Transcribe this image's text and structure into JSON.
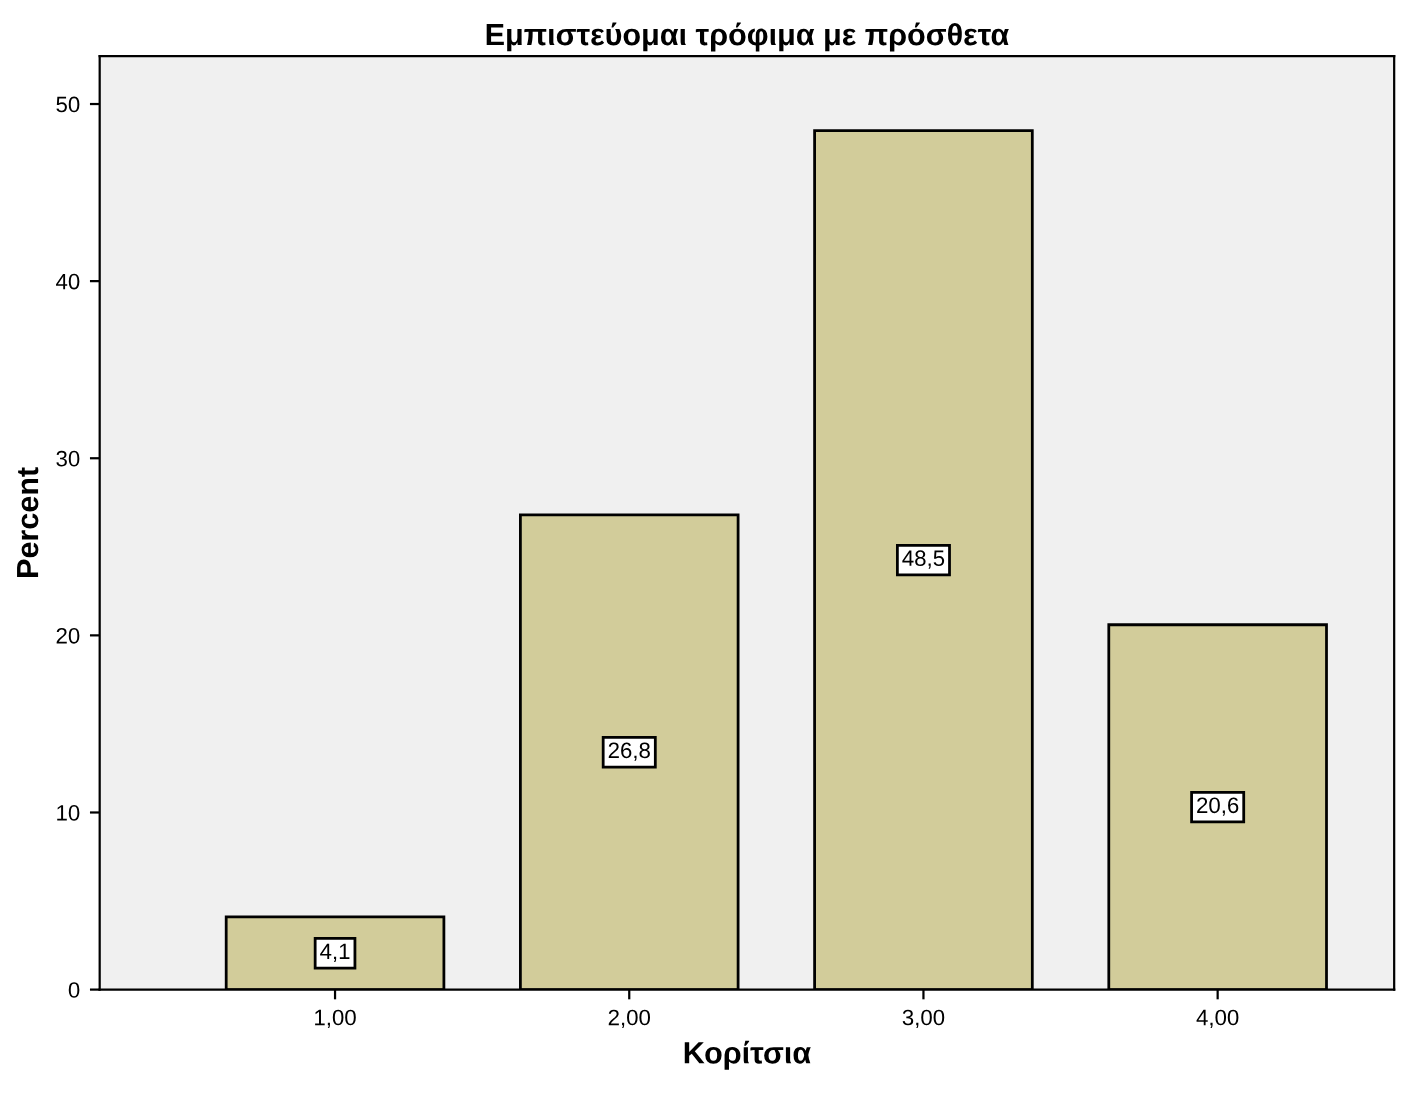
{
  "chart_data": {
    "type": "bar",
    "title": "Εμπιστεύομαι τρόφιμα με πρόσθετα",
    "xlabel": "Κορίτσια",
    "ylabel": "Percent",
    "categories": [
      "1,00",
      "2,00",
      "3,00",
      "4,00"
    ],
    "values": [
      4.1,
      26.8,
      48.5,
      20.6
    ],
    "value_labels": [
      "4,1",
      "26,8",
      "48,5",
      "20,6"
    ],
    "color": "#d2cc9a",
    "ylim": [
      0,
      52.7
    ],
    "yticks": [
      0,
      10,
      20,
      30,
      40,
      50
    ],
    "grid": false,
    "legend": false
  }
}
